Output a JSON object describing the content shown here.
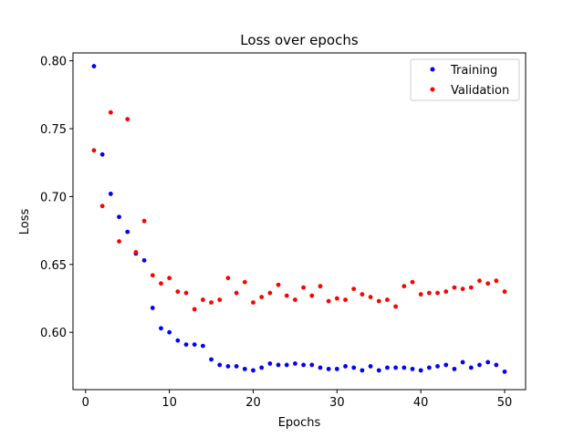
{
  "chart_data": {
    "type": "scatter",
    "title": "Loss over epochs",
    "xlabel": "Epochs",
    "ylabel": "Loss",
    "xlim": [
      -1.5,
      52.5
    ],
    "ylim": [
      0.5578,
      0.8058
    ],
    "xticks": [
      0,
      10,
      20,
      30,
      40,
      50
    ],
    "yticks": [
      0.6,
      0.65,
      0.7,
      0.75,
      0.8
    ],
    "ytick_labels": [
      "0.60",
      "0.65",
      "0.70",
      "0.75",
      "0.80"
    ],
    "grid": false,
    "legend_position": "top-right",
    "series": [
      {
        "name": "Training",
        "color": "#0000ff",
        "x": [
          1,
          2,
          3,
          4,
          5,
          6,
          7,
          8,
          9,
          10,
          11,
          12,
          13,
          14,
          15,
          16,
          17,
          18,
          19,
          20,
          21,
          22,
          23,
          24,
          25,
          26,
          27,
          28,
          29,
          30,
          31,
          32,
          33,
          34,
          35,
          36,
          37,
          38,
          39,
          40,
          41,
          42,
          43,
          44,
          45,
          46,
          47,
          48,
          49,
          50
        ],
        "values": [
          0.796,
          0.731,
          0.702,
          0.685,
          0.674,
          0.658,
          0.653,
          0.618,
          0.603,
          0.6,
          0.594,
          0.591,
          0.591,
          0.59,
          0.58,
          0.576,
          0.575,
          0.575,
          0.573,
          0.572,
          0.574,
          0.577,
          0.576,
          0.576,
          0.577,
          0.576,
          0.576,
          0.574,
          0.573,
          0.573,
          0.575,
          0.574,
          0.572,
          0.575,
          0.572,
          0.574,
          0.574,
          0.574,
          0.573,
          0.572,
          0.574,
          0.575,
          0.576,
          0.573,
          0.578,
          0.574,
          0.576,
          0.578,
          0.576,
          0.571
        ]
      },
      {
        "name": "Validation",
        "color": "#ff0000",
        "x": [
          1,
          2,
          3,
          4,
          5,
          6,
          7,
          8,
          9,
          10,
          11,
          12,
          13,
          14,
          15,
          16,
          17,
          18,
          19,
          20,
          21,
          22,
          23,
          24,
          25,
          26,
          27,
          28,
          29,
          30,
          31,
          32,
          33,
          34,
          35,
          36,
          37,
          38,
          39,
          40,
          41,
          42,
          43,
          44,
          45,
          46,
          47,
          48,
          49,
          50
        ],
        "values": [
          0.734,
          0.693,
          0.762,
          0.667,
          0.757,
          0.659,
          0.682,
          0.642,
          0.636,
          0.64,
          0.63,
          0.629,
          0.617,
          0.624,
          0.622,
          0.624,
          0.64,
          0.629,
          0.637,
          0.622,
          0.626,
          0.629,
          0.635,
          0.627,
          0.624,
          0.633,
          0.627,
          0.634,
          0.623,
          0.625,
          0.624,
          0.632,
          0.628,
          0.626,
          0.623,
          0.624,
          0.619,
          0.634,
          0.637,
          0.628,
          0.629,
          0.629,
          0.63,
          0.633,
          0.632,
          0.633,
          0.638,
          0.636,
          0.638,
          0.63
        ]
      }
    ]
  }
}
